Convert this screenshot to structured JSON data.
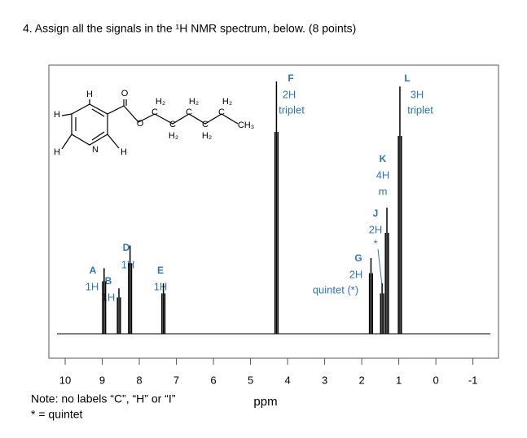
{
  "question": "4. Assign all the signals in the ¹H NMR spectrum, below. (8 points)",
  "molecule": {
    "atoms": [
      "H",
      "O",
      "H",
      "H",
      "N",
      "H",
      "O",
      "C",
      "H₂",
      "C",
      "H₂",
      "C",
      "H₂",
      "C",
      "H₂",
      "C",
      "H₂",
      "CH₃"
    ]
  },
  "spectrum": {
    "xlabel": "ppm",
    "xlim": [
      10.44,
      -1.69
    ],
    "xticks": [
      10,
      9,
      8,
      7,
      6,
      5,
      4,
      3,
      2,
      1,
      0,
      -1
    ],
    "peaks": [
      {
        "label": "A",
        "integration": "1H",
        "ppm": 8.95,
        "height": 0.26
      },
      {
        "label": "B",
        "integration": "1H",
        "ppm": 8.55,
        "height": 0.18
      },
      {
        "label": "D",
        "integration": "1H",
        "ppm": 8.25,
        "height": 0.35
      },
      {
        "label": "E",
        "integration": "1H",
        "ppm": 7.35,
        "height": 0.2
      },
      {
        "label": "F",
        "integration": "2H",
        "multiplicity": "triplet",
        "ppm": 4.3,
        "height": 1.0
      },
      {
        "label": "G",
        "integration": "2H",
        "multiplicity": "quintet (*)",
        "ppm": 1.75,
        "height": 0.3
      },
      {
        "label": "J",
        "integration": "2H",
        "multiplicity": "*",
        "ppm": 1.45,
        "height": 0.2
      },
      {
        "label": "K",
        "integration": "4H",
        "multiplicity": "m",
        "ppm": 1.32,
        "height": 0.5
      },
      {
        "label": "L",
        "integration": "3H",
        "multiplicity": "triplet",
        "ppm": 0.97,
        "height": 0.98
      }
    ]
  },
  "notes": [
    "Note: no labels “C”, “H” or “I”",
    "* = quintet"
  ]
}
